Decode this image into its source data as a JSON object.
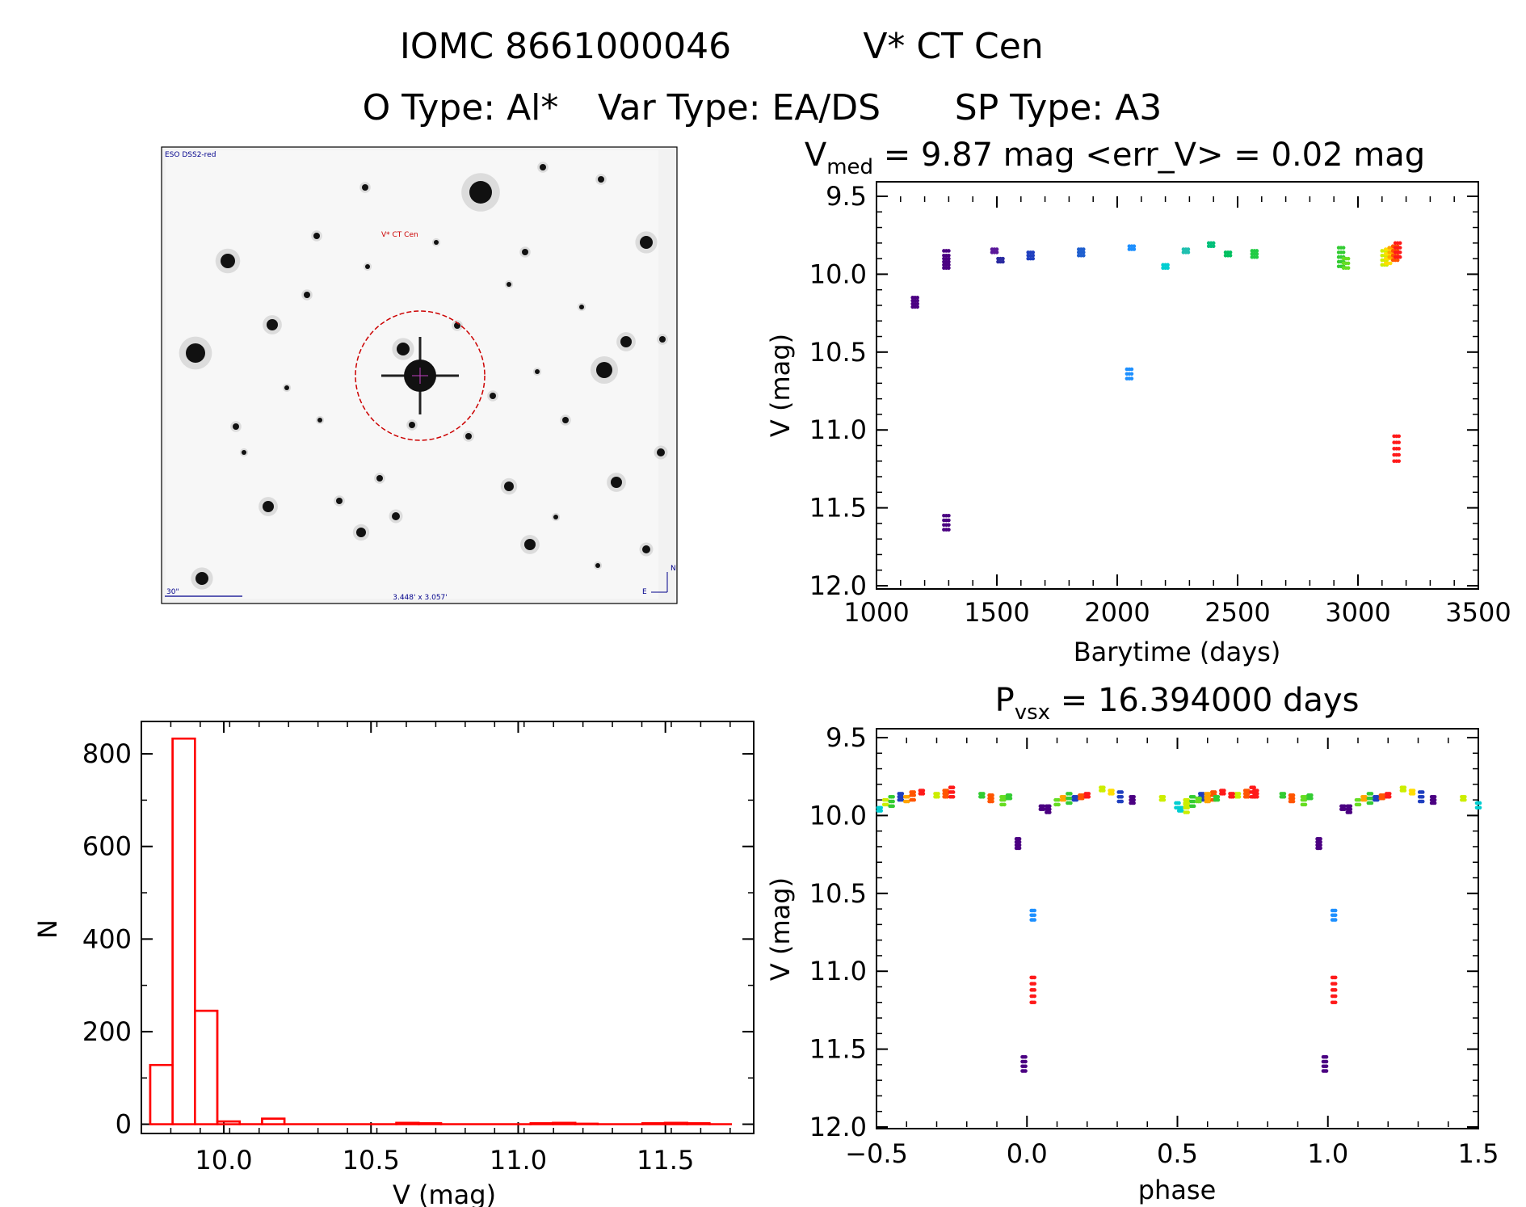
{
  "header": {
    "line1_id": "IOMC 8661000046",
    "line1_name": "V* CT Cen",
    "line2_otype": "O Type: Al*",
    "line2_vartype": "Var Type: EA/DS",
    "line2_sptype": "SP Type: A3"
  },
  "image_panel": {
    "survey": "ESO DSS2-red",
    "target_label": "V* CT Cen",
    "scale_label": "30\"",
    "fov_label": "3.448' x 3.057'",
    "north": "N",
    "east": "E"
  },
  "colors": {
    "hist": "#ff0000",
    "circle": "#cc0000",
    "annotation": "#00008b"
  },
  "chart_data": [
    {
      "type": "scatter",
      "name": "light_curve",
      "title_main": "V",
      "title_sub": "med",
      "title_rest": " = 9.87 mag <err_V> = 0.02 mag",
      "xlabel": "Barytime (days)",
      "ylabel": "V (mag)",
      "xlim": [
        1000,
        3500
      ],
      "ylim": [
        12.0,
        9.5
      ],
      "y_inverted": true,
      "xticks": [
        "1000",
        "1500",
        "2000",
        "2500",
        "3000",
        "3500"
      ],
      "yticks": [
        "9.5",
        "10.0",
        "10.5",
        "11.0",
        "11.5",
        "12.0"
      ],
      "groups": [
        {
          "x": 1160,
          "y": [
            10.15,
            10.17,
            10.19,
            10.21
          ],
          "color": "#4b0082"
        },
        {
          "x": 1290,
          "y": [
            9.85,
            9.88,
            9.9,
            9.92,
            9.94,
            9.96
          ],
          "color": "#4b0082"
        },
        {
          "x": 1290,
          "y": [
            11.55,
            11.58,
            11.61,
            11.64
          ],
          "color": "#4b0082"
        },
        {
          "x": 1490,
          "y": [
            9.84,
            9.86
          ],
          "color": "#5a189a"
        },
        {
          "x": 1515,
          "y": [
            9.9,
            9.92
          ],
          "color": "#2a2aa0"
        },
        {
          "x": 1640,
          "y": [
            9.86,
            9.88,
            9.9
          ],
          "color": "#1f3fbf"
        },
        {
          "x": 1850,
          "y": [
            9.84,
            9.86,
            9.88
          ],
          "color": "#1f5fcf"
        },
        {
          "x": 2050,
          "y": [
            10.61,
            10.64,
            10.67
          ],
          "color": "#1e90ff"
        },
        {
          "x": 2060,
          "y": [
            9.82,
            9.84
          ],
          "color": "#1e90ff"
        },
        {
          "x": 2200,
          "y": [
            9.94,
            9.96
          ],
          "color": "#00ced1"
        },
        {
          "x": 2285,
          "y": [
            9.84,
            9.86
          ],
          "color": "#20c0b0"
        },
        {
          "x": 2390,
          "y": [
            9.8,
            9.82
          ],
          "color": "#00c07a"
        },
        {
          "x": 2460,
          "y": [
            9.86,
            9.88
          ],
          "color": "#00c060"
        },
        {
          "x": 2570,
          "y": [
            9.85,
            9.87,
            9.89
          ],
          "color": "#22cc44"
        },
        {
          "x": 2930,
          "y": [
            9.83,
            9.86,
            9.89,
            9.92,
            9.95
          ],
          "color": "#33cc33"
        },
        {
          "x": 2950,
          "y": [
            9.9,
            9.93,
            9.96
          ],
          "color": "#66dd22"
        },
        {
          "x": 3110,
          "y": [
            9.85,
            9.88,
            9.91,
            9.94
          ],
          "color": "#ccee00"
        },
        {
          "x": 3125,
          "y": [
            9.84,
            9.87,
            9.9,
            9.93
          ],
          "color": "#ffdd00"
        },
        {
          "x": 3140,
          "y": [
            9.83,
            9.86,
            9.89
          ],
          "color": "#ffa500"
        },
        {
          "x": 3155,
          "y": [
            9.82,
            9.85,
            9.88,
            9.91
          ],
          "color": "#ff5500"
        },
        {
          "x": 3165,
          "y": [
            9.8,
            9.83,
            9.86,
            9.89
          ],
          "color": "#ff1a1a"
        },
        {
          "x": 3160,
          "y": [
            11.04,
            11.08,
            11.12,
            11.16,
            11.2
          ],
          "color": "#ff1a1a"
        }
      ]
    },
    {
      "type": "bar",
      "name": "histogram",
      "xlabel": "V (mag)",
      "ylabel": "N",
      "xlim": [
        9.72,
        11.8
      ],
      "ylim": [
        -20,
        870
      ],
      "xticks": [
        "10.0",
        "10.5",
        "11.0",
        "11.5"
      ],
      "yticks": [
        "0",
        "200",
        "400",
        "600",
        "800"
      ],
      "bin_width": 0.076,
      "bin_start": 9.75,
      "values": [
        128,
        833,
        245,
        6,
        0,
        12,
        0,
        0,
        0,
        0,
        0,
        3,
        2,
        0,
        0,
        0,
        0,
        2,
        3,
        1,
        0,
        0,
        2,
        3,
        2,
        0
      ],
      "color": "#ff0000"
    },
    {
      "type": "scatter",
      "name": "phased_curve",
      "title_main": "P",
      "title_sub": "vsx",
      "title_rest": " = 16.394000 days",
      "xlabel": "phase",
      "ylabel": "V (mag)",
      "xlim": [
        -0.5,
        1.5
      ],
      "ylim": [
        12.0,
        9.5
      ],
      "y_inverted": true,
      "xticks": [
        "−0.5",
        "0.0",
        "0.5",
        "1.0",
        "1.5"
      ],
      "yticks": [
        "9.5",
        "10.0",
        "10.5",
        "11.0",
        "11.5",
        "12.0"
      ],
      "base_groups": [
        {
          "p": -0.49,
          "y": [
            9.95,
            9.97
          ],
          "color": "#00ced1"
        },
        {
          "p": -0.47,
          "y": [
            9.9,
            9.93
          ],
          "color": "#ccee00"
        },
        {
          "p": -0.45,
          "y": [
            9.88,
            9.91,
            9.94
          ],
          "color": "#33cc33"
        },
        {
          "p": -0.42,
          "y": [
            9.86,
            9.88,
            9.9
          ],
          "color": "#1f3fbf"
        },
        {
          "p": -0.4,
          "y": [
            9.88,
            9.91
          ],
          "color": "#ffa500"
        },
        {
          "p": -0.38,
          "y": [
            9.85,
            9.87,
            9.9
          ],
          "color": "#ff5500"
        },
        {
          "p": -0.35,
          "y": [
            9.84,
            9.86
          ],
          "color": "#ff1a1a"
        },
        {
          "p": -0.3,
          "y": [
            9.86,
            9.88
          ],
          "color": "#ccee00"
        },
        {
          "p": -0.27,
          "y": [
            9.84,
            9.86,
            9.88
          ],
          "color": "#ff5500"
        },
        {
          "p": -0.25,
          "y": [
            9.82,
            9.85,
            9.88
          ],
          "color": "#ff1a1a"
        },
        {
          "p": -0.15,
          "y": [
            9.86,
            9.88
          ],
          "color": "#33cc33"
        },
        {
          "p": -0.12,
          "y": [
            9.87,
            9.89,
            9.91
          ],
          "color": "#ff5500"
        },
        {
          "p": -0.08,
          "y": [
            9.88,
            9.9,
            9.93
          ],
          "color": "#66dd22"
        },
        {
          "p": -0.06,
          "y": [
            9.87,
            9.89
          ],
          "color": "#33cc33"
        },
        {
          "p": -0.03,
          "y": [
            10.15,
            10.17,
            10.19,
            10.21
          ],
          "color": "#4b0082"
        },
        {
          "p": -0.01,
          "y": [
            11.55,
            11.58,
            11.61,
            11.64
          ],
          "color": "#4b0082"
        },
        {
          "p": 0.02,
          "y": [
            10.61,
            10.64,
            10.67
          ],
          "color": "#1e90ff"
        },
        {
          "p": 0.02,
          "y": [
            11.04,
            11.08,
            11.12,
            11.16,
            11.2
          ],
          "color": "#ff1a1a"
        },
        {
          "p": 0.05,
          "y": [
            9.94,
            9.96
          ],
          "color": "#4b0082"
        },
        {
          "p": 0.07,
          "y": [
            9.94,
            9.96,
            9.98
          ],
          "color": "#4b0082"
        },
        {
          "p": 0.1,
          "y": [
            9.9,
            9.93
          ],
          "color": "#66dd22"
        },
        {
          "p": 0.12,
          "y": [
            9.88,
            9.9
          ],
          "color": "#ffa500"
        },
        {
          "p": 0.14,
          "y": [
            9.86,
            9.89,
            9.92
          ],
          "color": "#33cc33"
        },
        {
          "p": 0.16,
          "y": [
            9.88,
            9.9
          ],
          "color": "#1f3fbf"
        },
        {
          "p": 0.18,
          "y": [
            9.87,
            9.89
          ],
          "color": "#ff5500"
        },
        {
          "p": 0.2,
          "y": [
            9.86,
            9.88
          ],
          "color": "#ff1a1a"
        },
        {
          "p": 0.25,
          "y": [
            9.82,
            9.84
          ],
          "color": "#ccee00"
        },
        {
          "p": 0.28,
          "y": [
            9.84,
            9.86
          ],
          "color": "#ffdd00"
        },
        {
          "p": 0.31,
          "y": [
            9.85,
            9.88,
            9.91
          ],
          "color": "#1f3fbf"
        },
        {
          "p": 0.35,
          "y": [
            9.88,
            9.9,
            9.92
          ],
          "color": "#4b0082"
        },
        {
          "p": 0.45,
          "y": [
            9.88,
            9.9
          ],
          "color": "#ccee00"
        },
        {
          "p": 0.5,
          "y": [
            9.92,
            9.95
          ],
          "color": "#00ced1"
        },
        {
          "p": 0.53,
          "y": [
            9.92,
            9.95,
            9.98
          ],
          "color": "#ccee00"
        },
        {
          "p": 0.57,
          "y": [
            9.89,
            9.91
          ],
          "color": "#66dd22"
        },
        {
          "p": 0.6,
          "y": [
            9.86,
            9.89
          ],
          "color": "#ffa500"
        },
        {
          "p": 0.63,
          "y": [
            9.88,
            9.9
          ],
          "color": "#33cc33"
        },
        {
          "p": 0.68,
          "y": [
            9.86,
            9.88
          ],
          "color": "#ff1a1a"
        },
        {
          "p": 0.76,
          "y": [
            9.84,
            9.86,
            9.88
          ],
          "color": "#ff1a1a"
        }
      ]
    }
  ]
}
